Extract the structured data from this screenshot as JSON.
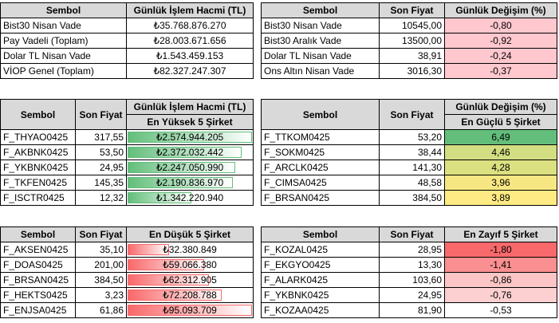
{
  "table_summary_volume": {
    "headers": [
      "Sembol",
      "Günlük İşlem Hacmi (TL)"
    ],
    "rows": [
      {
        "sym": "Bist30 Nisan Vade",
        "val": "₺35.768.876.270"
      },
      {
        "sym": "Pay Vadeli (Toplam)",
        "val": "₺28.003.671.656"
      },
      {
        "sym": "Dolar TL Nisan Vade",
        "val": "₺1.543.459.153"
      },
      {
        "sym": "VİOP Genel (Toplam)",
        "val": "₺82.327.247.307"
      }
    ]
  },
  "table_summary_price": {
    "headers": [
      "Sembol",
      "Son Fiyat",
      "Günlük Değişim (%)"
    ],
    "rows": [
      {
        "sym": "Bist30 Nisan Vade",
        "price": "10545,00",
        "chg": "-0,80"
      },
      {
        "sym": "Bist30 Aralık Vade",
        "price": "13500,00",
        "chg": "-0,92"
      },
      {
        "sym": "Dolar TL Nisan Vade",
        "price": "38,91",
        "chg": "-0,24"
      },
      {
        "sym": "Ons Altın Nisan Vade",
        "price": "3016,30",
        "chg": "-0,37"
      }
    ]
  },
  "table_top_volume": {
    "headers": [
      "Sembol",
      "Son Fiyat",
      "Günlük İşlem Hacmi (TL)"
    ],
    "subheader": "En Yüksek 5 Şirket",
    "rows": [
      {
        "sym": "F_THYAO0425",
        "price": "317,55",
        "vol": "₺2.574.944.205",
        "fill": 1.0
      },
      {
        "sym": "F_AKBNK0425",
        "price": "53,50",
        "vol": "₺2.372.032.442",
        "fill": 0.92
      },
      {
        "sym": "F_YKBNK0425",
        "price": "24,95",
        "vol": "₺2.247.050.990",
        "fill": 0.87
      },
      {
        "sym": "F_TKFEN0425",
        "price": "145,35",
        "vol": "₺2.190.836.970",
        "fill": 0.85
      },
      {
        "sym": "F_ISCTR0425",
        "price": "12,32",
        "vol": "₺1.342.220.940",
        "fill": 0.52
      }
    ]
  },
  "table_top_gainers": {
    "headers": [
      "Sembol",
      "Son Fiyat",
      "Günlük Değişim (%)"
    ],
    "subheader": "En Güçlü 5 Şirket",
    "rows": [
      {
        "sym": "F_TTKOM0425",
        "price": "53,20",
        "chg": "6,49",
        "color": "#63be7b"
      },
      {
        "sym": "F_SOKM0425",
        "price": "38,44",
        "chg": "4,46",
        "color": "#d2de81"
      },
      {
        "sym": "F_ARCLK0425",
        "price": "141,30",
        "chg": "4,28",
        "color": "#dbe081"
      },
      {
        "sym": "F_CIMSA0425",
        "price": "48,58",
        "chg": "3,96",
        "color": "#f7e783"
      },
      {
        "sym": "F_BRSAN0425",
        "price": "384,50",
        "chg": "3,89",
        "color": "#ffeb84"
      }
    ]
  },
  "table_low_volume": {
    "headers": [
      "Sembol",
      "Son Fiyat",
      "En Düşük 5 Şirket"
    ],
    "rows": [
      {
        "sym": "F_AKSEN0425",
        "price": "35,10",
        "vol": "₺32.380.849",
        "fill": 0.34
      },
      {
        "sym": "F_DOAS0425",
        "price": "201,00",
        "vol": "₺59.066.380",
        "fill": 0.62
      },
      {
        "sym": "F_BRSAN0425",
        "price": "384,50",
        "vol": "₺62.312.905",
        "fill": 0.66
      },
      {
        "sym": "F_HEKTS0425",
        "price": "3,23",
        "vol": "₺72.208.788",
        "fill": 0.76
      },
      {
        "sym": "F_ENJSA0425",
        "price": "61,86",
        "vol": "₺95.093.709",
        "fill": 1.0
      }
    ]
  },
  "table_top_losers": {
    "headers": [
      "Sembol",
      "Son Fiyat",
      "En Zayıf 5 Şirket"
    ],
    "rows": [
      {
        "sym": "F_KOZAL0425",
        "price": "28,95",
        "chg": "-1,80",
        "color": "#f8696b"
      },
      {
        "sym": "F_EKGYO0425",
        "price": "13,30",
        "chg": "-1,41",
        "color": "#f98f90"
      },
      {
        "sym": "F_ALARK0425",
        "price": "103,60",
        "chg": "-0,86",
        "color": "#fcc5c6"
      },
      {
        "sym": "F_YKBNK0425",
        "price": "24,95",
        "chg": "-0,76",
        "color": "#fccfd0"
      },
      {
        "sym": "F_KOZAA0425",
        "price": "81,90",
        "chg": "-0,53",
        "color": "#ffffff"
      }
    ]
  }
}
